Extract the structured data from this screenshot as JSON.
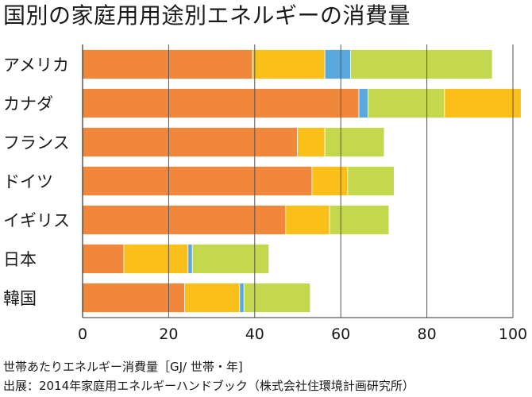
{
  "header": {
    "title": "国別の家庭用用途別エネルギーの消費量"
  },
  "footer": {
    "unit_note": "世帯あたりエネルギー消費量［GJ/ 世帯・年]",
    "source_note": "出展：2014年家庭用エネルギーハンドブック（株式会社住環境計画研究所）"
  },
  "chart_data": {
    "type": "bar",
    "orientation": "horizontal",
    "stacked": true,
    "title": "国別の家庭用用途別エネルギーの消費量",
    "xlabel": "世帯あたりエネルギー消費量［GJ/ 世帯・年]",
    "ylabel": "",
    "xlim": [
      0,
      100
    ],
    "xticks": [
      0,
      20,
      40,
      60,
      80,
      100
    ],
    "grid": "vertical",
    "legend": "none",
    "categories": [
      "アメリカ",
      "カナダ",
      "フランス",
      "ドイツ",
      "イギリス",
      "日本",
      "韓国"
    ],
    "series": [
      {
        "color": "#f0873a",
        "values": [
          39.5,
          64.2,
          49.9,
          53.3,
          47.2,
          9.6,
          23.7
        ]
      },
      {
        "color": "#fbbf1a",
        "values": [
          16.8,
          0,
          6.4,
          8.3,
          10.2,
          14.9,
          12.8
        ]
      },
      {
        "color": "#5aa8de",
        "values": [
          6.0,
          2.1,
          0,
          0,
          0,
          1.0,
          1.0
        ]
      },
      {
        "color": "#c4d84e",
        "values": [
          32.9,
          17.8,
          0,
          0,
          0,
          0,
          0
        ]
      },
      {
        "color": "#fbbf1a",
        "values": [
          0,
          17.8,
          0,
          0,
          0,
          0,
          0
        ]
      },
      {
        "color": "#c4d84e",
        "values": [
          0,
          0,
          13.8,
          10.8,
          13.8,
          17.8,
          15.4
        ]
      }
    ]
  }
}
